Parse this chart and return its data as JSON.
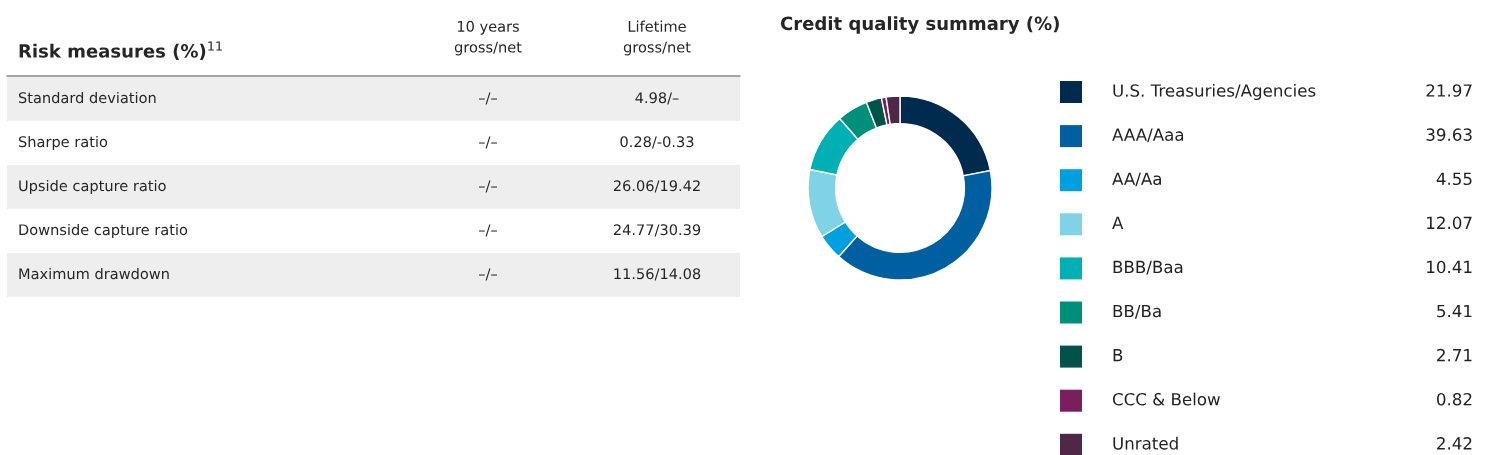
{
  "chart_data": [
    {
      "type": "other",
      "title": "Risk measures (%)$^{11}$",
      "categories": [
        "10 years\ngross/net",
        "Lifetime\ngross/net"
      ],
      "y_categories": [
        "Standard deviation",
        "Sharpe ratio",
        "Upside capture ratio",
        "Downside capture ratio",
        "Maximum drawdown"
      ],
      "cell_labels": [
        [
          "–/–",
          "4.98/–"
        ],
        [
          "–/–",
          "0.28/-0.33"
        ],
        [
          "–/–",
          "26.06/19.42"
        ],
        [
          "–/–",
          "24.77/30.39"
        ],
        [
          "–/–",
          "11.56/14.08"
        ]
      ]
    },
    {
      "type": "donut",
      "title": "Credit quality summary (%)",
      "categories": [
        "U.S. Treasuries/Agencies",
        "AAA/Aaa",
        "AA/Aa",
        "A",
        "BBB/Baa",
        "BB/Ba",
        "B",
        "CCC & Below",
        "Unrated"
      ],
      "values": [
        21.97,
        39.63,
        4.55,
        12.07,
        10.41,
        5.41,
        2.71,
        0.82,
        2.42
      ],
      "colors": [
        "#002b4f",
        "#005fa0",
        "#009fe0",
        "#80d3e6",
        "#00b0b4",
        "#008f78",
        "#00524a",
        "#7a1f5e",
        "#4f2847"
      ],
      "data_labels": true,
      "legend": "right"
    }
  ]
}
